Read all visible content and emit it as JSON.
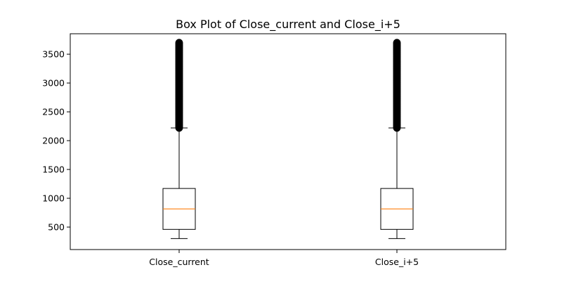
{
  "chart_data": {
    "type": "box",
    "title": "Box Plot of Close_current and Close_i+5",
    "xlabel": "",
    "ylabel": "",
    "ylim": [
      110,
      3855
    ],
    "yticks": [
      500,
      1000,
      1500,
      2000,
      2500,
      3000,
      3500
    ],
    "categories": [
      "Close_current",
      "Close_i+5"
    ],
    "series": [
      {
        "category": "Close_current",
        "whisker_low": 300,
        "q1": 460,
        "median": 815,
        "q3": 1170,
        "whisker_high": 2220,
        "outlier_min": 2220,
        "outlier_max": 3700
      },
      {
        "category": "Close_i+5",
        "whisker_low": 300,
        "q1": 460,
        "median": 815,
        "q3": 1170,
        "whisker_high": 2220,
        "outlier_min": 2220,
        "outlier_max": 3700
      }
    ],
    "grid": false,
    "legend": "none",
    "colors": {
      "box": "#000000",
      "median": "#ff7f0e",
      "outlier": "#000000"
    }
  }
}
